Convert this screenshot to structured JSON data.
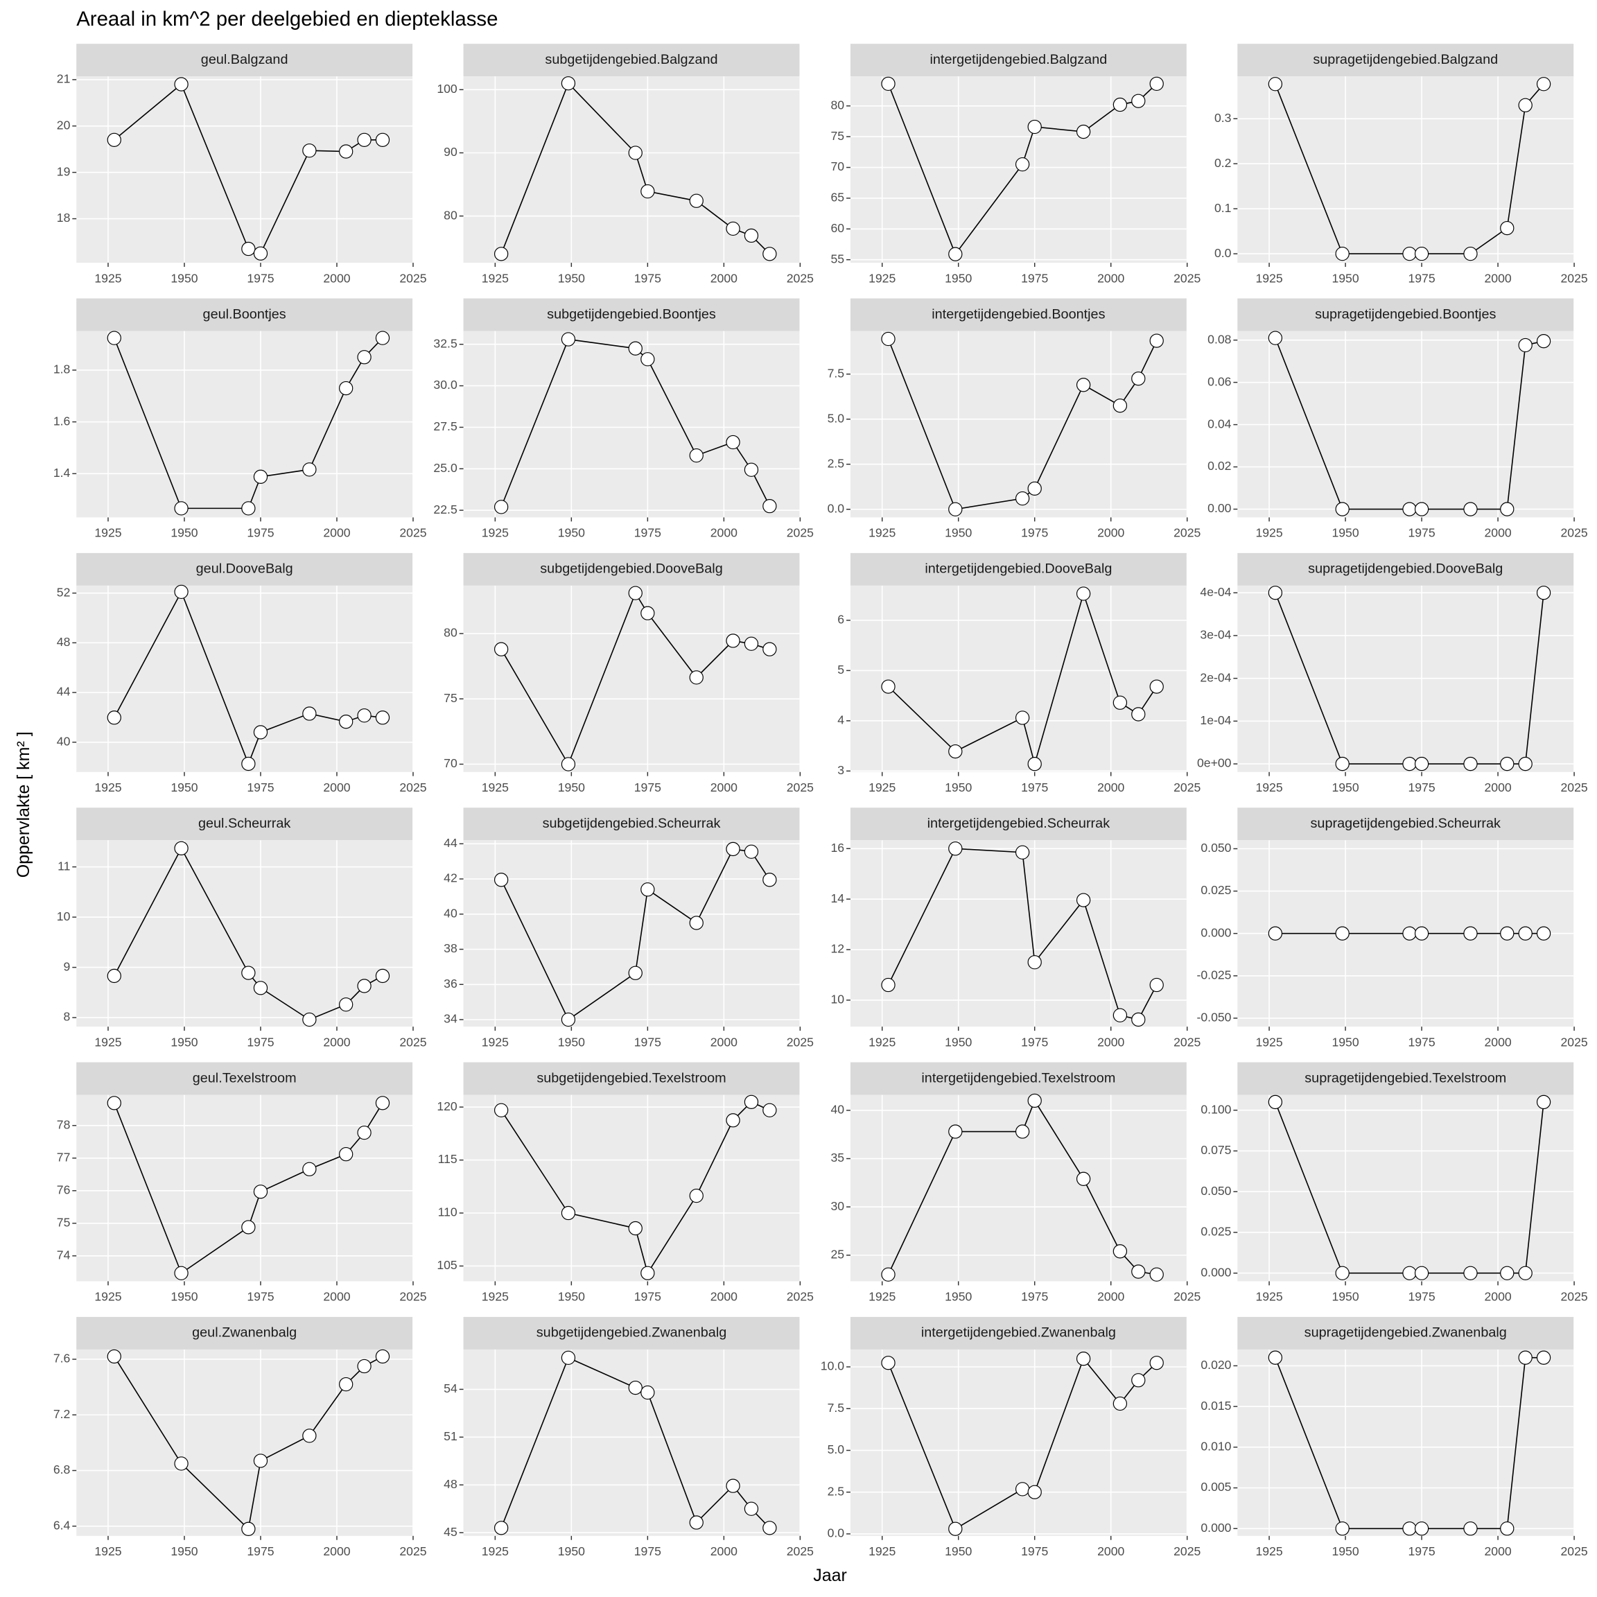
{
  "title": "Areaal in km^2 per deelgebied en diepteklasse",
  "x_label": "Jaar",
  "y_label": "Oppervlakte [ km² ]",
  "chart_data": [
    {
      "type": "line",
      "title": "geul.Balgzand",
      "color": "#000000",
      "grid": true,
      "x": [
        1927,
        1949,
        1971,
        1975,
        1991,
        2003,
        2009,
        2015
      ],
      "values": [
        19.7,
        20.9,
        17.35,
        17.25,
        19.47,
        19.45,
        19.7,
        19.7
      ],
      "xlim": [
        1914.6,
        2024.8
      ],
      "xticks": [
        1925,
        1950,
        1975,
        2000,
        2025
      ],
      "ylim": [
        17.05,
        21.07
      ],
      "yticks": [
        18,
        19,
        20,
        21
      ]
    },
    {
      "type": "line",
      "title": "subgetijdengebied.Balgzand",
      "color": "#000000",
      "grid": true,
      "x": [
        1927,
        1949,
        1971,
        1975,
        1991,
        2003,
        2009,
        2015
      ],
      "values": [
        74.0,
        101.0,
        90.0,
        83.9,
        82.4,
        78.0,
        76.9,
        74.0
      ],
      "xlim": [
        1914.6,
        2024.8
      ],
      "xticks": [
        1925,
        1950,
        1975,
        2000,
        2025
      ],
      "ylim": [
        72.6,
        102.1
      ],
      "yticks": [
        80,
        90,
        100
      ]
    },
    {
      "type": "line",
      "title": "intergetijdengebied.Balgzand",
      "color": "#000000",
      "grid": true,
      "x": [
        1927,
        1949,
        1971,
        1975,
        1991,
        2003,
        2009,
        2015
      ],
      "values": [
        83.6,
        55.9,
        70.5,
        76.6,
        75.8,
        80.2,
        80.8,
        83.6
      ],
      "xlim": [
        1914.6,
        2024.8
      ],
      "xticks": [
        1925,
        1950,
        1975,
        2000,
        2025
      ],
      "ylim": [
        54.5,
        84.8
      ],
      "yticks": [
        55,
        60,
        65,
        70,
        75,
        80
      ]
    },
    {
      "type": "line",
      "title": "supragetijdengebied.Balgzand",
      "color": "#000000",
      "grid": true,
      "x": [
        1927,
        1949,
        1971,
        1975,
        1991,
        2003,
        2009,
        2015
      ],
      "values": [
        0.377,
        0,
        0,
        0,
        0,
        0.057,
        0.33,
        0.377
      ],
      "xlim": [
        1914.6,
        2024.8
      ],
      "xticks": [
        1925,
        1950,
        1975,
        2000,
        2025
      ],
      "ylim": [
        -0.02,
        0.394
      ],
      "yticks": [
        {
          "value": 0,
          "label": "0.0"
        },
        0.1,
        0.2,
        0.3
      ]
    },
    {
      "type": "line",
      "title": "geul.Boontjes",
      "color": "#000000",
      "grid": true,
      "x": [
        1927,
        1949,
        1971,
        1975,
        1991,
        2003,
        2009,
        2015
      ],
      "values": [
        1.924,
        1.266,
        1.266,
        1.388,
        1.416,
        1.73,
        1.85,
        1.924
      ],
      "xlim": [
        1914.6,
        2024.8
      ],
      "xticks": [
        1925,
        1950,
        1975,
        2000,
        2025
      ],
      "ylim": [
        1.231,
        1.951
      ],
      "yticks": [
        1.4,
        1.6,
        1.8
      ]
    },
    {
      "type": "line",
      "title": "subgetijdengebied.Boontjes",
      "color": "#000000",
      "grid": true,
      "x": [
        1927,
        1949,
        1971,
        1975,
        1991,
        2003,
        2009,
        2015
      ],
      "values": [
        22.7,
        32.8,
        32.25,
        31.6,
        25.8,
        26.6,
        24.94,
        22.75
      ],
      "xlim": [
        1914.6,
        2024.8
      ],
      "xticks": [
        1925,
        1950,
        1975,
        2000,
        2025
      ],
      "ylim": [
        22.07,
        33.3
      ],
      "yticks": [
        22.5,
        {
          "value": 25,
          "label": "25.0"
        },
        27.5,
        {
          "value": 30,
          "label": "30.0"
        },
        32.5
      ]
    },
    {
      "type": "line",
      "title": "intergetijdengebied.Boontjes",
      "color": "#000000",
      "grid": true,
      "x": [
        1927,
        1949,
        1971,
        1975,
        1991,
        2003,
        2009,
        2015
      ],
      "values": [
        9.45,
        0,
        0.6,
        1.15,
        6.9,
        5.75,
        7.25,
        9.35
      ],
      "xlim": [
        1914.6,
        2024.8
      ],
      "xticks": [
        1925,
        1950,
        1975,
        2000,
        2025
      ],
      "ylim": [
        -0.45,
        9.89
      ],
      "yticks": [
        {
          "value": 0,
          "label": "0.0"
        },
        2.5,
        {
          "value": 5,
          "label": "5.0"
        },
        7.5
      ]
    },
    {
      "type": "line",
      "title": "supragetijdengebied.Boontjes",
      "color": "#000000",
      "grid": true,
      "x": [
        1927,
        1949,
        1971,
        1975,
        1991,
        2003,
        2009,
        2015
      ],
      "values": [
        0.081,
        0,
        0,
        0,
        0,
        0,
        0.0776,
        0.0795
      ],
      "xlim": [
        1914.6,
        2024.8
      ],
      "xticks": [
        1925,
        1950,
        1975,
        2000,
        2025
      ],
      "ylim": [
        -0.0039,
        0.0843
      ],
      "yticks": [
        {
          "value": 0,
          "label": "0.00"
        },
        0.02,
        0.04,
        0.06,
        0.08
      ]
    },
    {
      "type": "line",
      "title": "geul.DooveBalg",
      "color": "#000000",
      "grid": true,
      "x": [
        1927,
        1949,
        1971,
        1975,
        1991,
        2003,
        2009,
        2015
      ],
      "values": [
        41.98,
        52.1,
        38.26,
        40.8,
        42.3,
        41.65,
        42.15,
        41.98
      ],
      "xlim": [
        1914.6,
        2024.8
      ],
      "xticks": [
        1925,
        1950,
        1975,
        2000,
        2025
      ],
      "ylim": [
        37.6,
        52.6
      ],
      "yticks": [
        40,
        44,
        48,
        52
      ]
    },
    {
      "type": "line",
      "title": "subgetijdengebied.DooveBalg",
      "color": "#000000",
      "grid": true,
      "x": [
        1927,
        1949,
        1971,
        1975,
        1991,
        2003,
        2009,
        2015
      ],
      "values": [
        78.8,
        70.0,
        83.1,
        81.56,
        76.64,
        79.45,
        79.22,
        78.8
      ],
      "xlim": [
        1914.6,
        2024.8
      ],
      "xticks": [
        1925,
        1950,
        1975,
        2000,
        2025
      ],
      "ylim": [
        69.4,
        83.67
      ],
      "yticks": [
        70,
        75,
        80
      ]
    },
    {
      "type": "line",
      "title": "intergetijdengebied.DooveBalg",
      "color": "#000000",
      "grid": true,
      "x": [
        1927,
        1949,
        1971,
        1975,
        1991,
        2003,
        2009,
        2015
      ],
      "values": [
        4.68,
        3.39,
        4.06,
        3.14,
        6.53,
        4.36,
        4.13,
        4.68
      ],
      "xlim": [
        1914.6,
        2024.8
      ],
      "xticks": [
        1925,
        1950,
        1975,
        2000,
        2025
      ],
      "ylim": [
        2.98,
        6.69
      ],
      "yticks": [
        3,
        4,
        5,
        6
      ]
    },
    {
      "type": "line",
      "title": "supragetijdengebied.DooveBalg",
      "color": "#000000",
      "grid": true,
      "x": [
        1927,
        1949,
        1971,
        1975,
        1991,
        2003,
        2009,
        2015
      ],
      "values": [
        0.0004,
        0,
        0,
        0,
        0,
        0,
        0,
        0.0004
      ],
      "xlim": [
        1914.6,
        2024.8
      ],
      "xticks": [
        1925,
        1950,
        1975,
        2000,
        2025
      ],
      "ylim": [
        -1.9e-05,
        0.0004167
      ],
      "yticks": [
        {
          "value": 0,
          "label": "0e+00"
        },
        {
          "value": 0.0001,
          "label": "1e-04"
        },
        {
          "value": 0.0002,
          "label": "2e-04"
        },
        {
          "value": 0.0003,
          "label": "3e-04"
        },
        {
          "value": 0.0004,
          "label": "4e-04"
        }
      ]
    },
    {
      "type": "line",
      "title": "geul.Scheurrak",
      "color": "#000000",
      "grid": true,
      "x": [
        1927,
        1949,
        1971,
        1975,
        1991,
        2003,
        2009,
        2015
      ],
      "values": [
        8.83,
        11.37,
        8.89,
        8.59,
        7.96,
        8.26,
        8.63,
        8.83
      ],
      "xlim": [
        1914.6,
        2024.8
      ],
      "xticks": [
        1925,
        1950,
        1975,
        2000,
        2025
      ],
      "ylim": [
        7.82,
        11.53
      ],
      "yticks": [
        8,
        9,
        10,
        11
      ]
    },
    {
      "type": "line",
      "title": "subgetijdengebied.Scheurrak",
      "color": "#000000",
      "grid": true,
      "x": [
        1927,
        1949,
        1971,
        1975,
        1991,
        2003,
        2009,
        2015
      ],
      "values": [
        41.95,
        34.0,
        36.65,
        41.4,
        39.5,
        43.7,
        43.55,
        41.95
      ],
      "xlim": [
        1914.6,
        2024.8
      ],
      "xticks": [
        1925,
        1950,
        1975,
        2000,
        2025
      ],
      "ylim": [
        33.6,
        44.2
      ],
      "yticks": [
        34,
        36,
        38,
        40,
        42,
        44
      ]
    },
    {
      "type": "line",
      "title": "intergetijdengebied.Scheurrak",
      "color": "#000000",
      "grid": true,
      "x": [
        1927,
        1949,
        1971,
        1975,
        1991,
        2003,
        2009,
        2015
      ],
      "values": [
        10.6,
        16.0,
        15.85,
        11.5,
        13.96,
        9.4,
        9.23,
        10.6
      ],
      "xlim": [
        1914.6,
        2024.8
      ],
      "xticks": [
        1925,
        1950,
        1975,
        2000,
        2025
      ],
      "ylim": [
        8.95,
        16.33
      ],
      "yticks": [
        10,
        12,
        14,
        16
      ]
    },
    {
      "type": "line",
      "title": "supragetijdengebied.Scheurrak",
      "color": "#000000",
      "grid": true,
      "x": [
        1927,
        1949,
        1971,
        1975,
        1991,
        2003,
        2009,
        2015
      ],
      "values": [
        0,
        0,
        0,
        0,
        0,
        0,
        0,
        0
      ],
      "xlim": [
        1914.6,
        2024.8
      ],
      "xticks": [
        1925,
        1950,
        1975,
        2000,
        2025
      ],
      "ylim": [
        -0.055,
        0.055
      ],
      "yticks": [
        {
          "value": -0.05,
          "label": "-0.050"
        },
        -0.025,
        {
          "value": 0,
          "label": "0.000"
        },
        0.025,
        {
          "value": 0.05,
          "label": "0.050"
        }
      ]
    },
    {
      "type": "line",
      "title": "geul.Texelstroom",
      "color": "#000000",
      "grid": true,
      "x": [
        1927,
        1949,
        1971,
        1975,
        1991,
        2003,
        2009,
        2015
      ],
      "values": [
        78.69,
        73.47,
        74.88,
        75.97,
        76.66,
        77.12,
        77.78,
        78.69
      ],
      "xlim": [
        1914.6,
        2024.8
      ],
      "xticks": [
        1925,
        1950,
        1975,
        2000,
        2025
      ],
      "ylim": [
        73.22,
        78.94
      ],
      "yticks": [
        74,
        75,
        76,
        77,
        78
      ]
    },
    {
      "type": "line",
      "title": "subgetijdengebied.Texelstroom",
      "color": "#000000",
      "grid": true,
      "x": [
        1927,
        1949,
        1971,
        1975,
        1991,
        2003,
        2009,
        2015
      ],
      "values": [
        119.7,
        110.0,
        108.56,
        104.33,
        111.63,
        118.75,
        120.48,
        119.7
      ],
      "xlim": [
        1914.6,
        2024.8
      ],
      "xticks": [
        1925,
        1950,
        1975,
        2000,
        2025
      ],
      "ylim": [
        103.56,
        121.15
      ],
      "yticks": [
        105,
        110,
        115,
        120
      ]
    },
    {
      "type": "line",
      "title": "intergetijdengebied.Texelstroom",
      "color": "#000000",
      "grid": true,
      "x": [
        1927,
        1949,
        1971,
        1975,
        1991,
        2003,
        2009,
        2015
      ],
      "values": [
        23.0,
        37.8,
        37.8,
        41.0,
        32.9,
        25.4,
        23.3,
        23.0
      ],
      "xlim": [
        1914.6,
        2024.8
      ],
      "xticks": [
        1925,
        1950,
        1975,
        2000,
        2025
      ],
      "ylim": [
        22.3,
        41.6
      ],
      "yticks": [
        25,
        30,
        35,
        40
      ]
    },
    {
      "type": "line",
      "title": "supragetijdengebied.Texelstroom",
      "color": "#000000",
      "grid": true,
      "x": [
        1927,
        1949,
        1971,
        1975,
        1991,
        2003,
        2009,
        2015
      ],
      "values": [
        0.105,
        0,
        0,
        0,
        0,
        0,
        0,
        0.105
      ],
      "xlim": [
        1914.6,
        2024.8
      ],
      "xticks": [
        1925,
        1950,
        1975,
        2000,
        2025
      ],
      "ylim": [
        -0.005,
        0.1094
      ],
      "yticks": [
        {
          "value": 0,
          "label": "0.000"
        },
        0.025,
        {
          "value": 0.05,
          "label": "0.050"
        },
        0.075,
        {
          "value": 0.1,
          "label": "0.100"
        }
      ]
    },
    {
      "type": "line",
      "title": "geul.Zwanenbalg",
      "color": "#000000",
      "grid": true,
      "x": [
        1927,
        1949,
        1971,
        1975,
        1991,
        2003,
        2009,
        2015
      ],
      "values": [
        7.62,
        6.85,
        6.38,
        6.87,
        7.05,
        7.42,
        7.55,
        7.62
      ],
      "xlim": [
        1914.6,
        2024.8
      ],
      "xticks": [
        1925,
        1950,
        1975,
        2000,
        2025
      ],
      "ylim": [
        6.33,
        7.67
      ],
      "yticks": [
        6.4,
        6.8,
        7.2,
        7.6
      ]
    },
    {
      "type": "line",
      "title": "subgetijdengebied.Zwanenbalg",
      "color": "#000000",
      "grid": true,
      "x": [
        1927,
        1949,
        1971,
        1975,
        1991,
        2003,
        2009,
        2015
      ],
      "values": [
        45.3,
        55.98,
        54.1,
        53.8,
        45.64,
        47.94,
        46.5,
        45.3
      ],
      "xlim": [
        1914.6,
        2024.8
      ],
      "xticks": [
        1925,
        1950,
        1975,
        2000,
        2025
      ],
      "ylim": [
        44.8,
        56.5
      ],
      "yticks": [
        45,
        48,
        51,
        54
      ]
    },
    {
      "type": "line",
      "title": "intergetijdengebied.Zwanenbalg",
      "color": "#000000",
      "grid": true,
      "x": [
        1927,
        1949,
        1971,
        1975,
        1991,
        2003,
        2009,
        2015
      ],
      "values": [
        10.24,
        0.3,
        2.68,
        2.5,
        10.49,
        7.8,
        9.2,
        10.24
      ],
      "xlim": [
        1914.6,
        2024.8
      ],
      "xticks": [
        1925,
        1950,
        1975,
        2000,
        2025
      ],
      "ylim": [
        -0.12,
        11.04
      ],
      "yticks": [
        {
          "value": 0,
          "label": "0.0"
        },
        2.5,
        {
          "value": 5,
          "label": "5.0"
        },
        7.5,
        {
          "value": 10,
          "label": "10.0"
        }
      ]
    },
    {
      "type": "line",
      "title": "supragetijdengebied.Zwanenbalg",
      "color": "#000000",
      "grid": true,
      "x": [
        1927,
        1949,
        1971,
        1975,
        1991,
        2003,
        2009,
        2015
      ],
      "values": [
        0.021,
        0,
        0,
        0,
        0,
        0,
        0.021,
        0.021
      ],
      "xlim": [
        1914.6,
        2024.8
      ],
      "xticks": [
        1925,
        1950,
        1975,
        2000,
        2025
      ],
      "ylim": [
        -0.0009,
        0.022
      ],
      "yticks": [
        {
          "value": 0,
          "label": "0.000"
        },
        0.005,
        {
          "value": 0.01,
          "label": "0.010"
        },
        0.015,
        {
          "value": 0.02,
          "label": "0.020"
        }
      ]
    }
  ]
}
